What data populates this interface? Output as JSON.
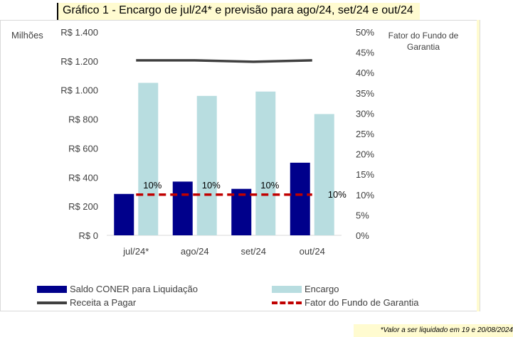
{
  "title": "Gráfico 1 - Encargo de jul/24* e previsão para ago/24, set/24 e out/24",
  "footnote": "*Valor a ser liquidado em 19 e 20/08/2024",
  "chart_data": {
    "type": "bar",
    "categories": [
      "jul/24*",
      "ago/24",
      "set/24",
      "out/24"
    ],
    "left_axis": {
      "unit_label": "Milhões",
      "ylim": [
        0,
        1400
      ],
      "ticks": [
        0,
        200,
        400,
        600,
        800,
        1000,
        1200,
        1400
      ],
      "tick_labels": [
        "R$ 0",
        "R$ 200",
        "R$ 400",
        "R$ 600",
        "R$ 800",
        "R$ 1.000",
        "R$ 1.200",
        "R$ 1.400"
      ]
    },
    "right_axis": {
      "title": "Fator do Fundo de Garantia",
      "ylim": [
        0,
        50
      ],
      "ticks": [
        0,
        5,
        10,
        15,
        20,
        25,
        30,
        35,
        40,
        45,
        50
      ],
      "tick_labels": [
        "0%",
        "5%",
        "10%",
        "15%",
        "20%",
        "25%",
        "30%",
        "35%",
        "40%",
        "45%",
        "50%"
      ]
    },
    "series": [
      {
        "name": "Saldo CONER para Liquidação",
        "type": "bar",
        "axis": "left",
        "color": "#00008b",
        "values": [
          285,
          370,
          320,
          500
        ]
      },
      {
        "name": "Encargo",
        "type": "bar",
        "axis": "left",
        "color": "#b8dde0",
        "values": [
          1050,
          960,
          990,
          835
        ]
      },
      {
        "name": "Receita a Pagar",
        "type": "line",
        "axis": "left",
        "color": "#404040",
        "values": [
          1205,
          1205,
          1195,
          1205
        ]
      },
      {
        "name": "Fator do Fundo de Garantia",
        "type": "line",
        "axis": "right",
        "color": "#c00000",
        "dashed": true,
        "values": [
          10,
          10,
          10,
          10
        ],
        "data_labels": [
          "10%",
          "10%",
          "10%",
          "10%"
        ]
      }
    ],
    "grid": false,
    "legend_position": "bottom"
  }
}
